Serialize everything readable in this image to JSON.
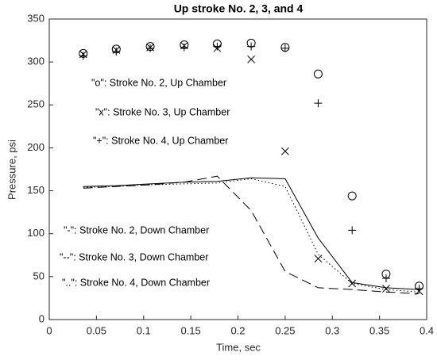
{
  "chart_data": {
    "type": "line",
    "title": "Up stroke No. 2, 3, and 4",
    "x_label": "Time, sec",
    "y_label": "Pressure, psi",
    "x": [
      0.036,
      0.071,
      0.107,
      0.143,
      0.178,
      0.214,
      0.25,
      0.285,
      0.321,
      0.357,
      0.392
    ],
    "series": [
      {
        "name": "\"o\": Stroke No. 2, Up Chamber",
        "color": "#000000",
        "marker": "o",
        "values": [
          310,
          315,
          318,
          320,
          321,
          322,
          317,
          286,
          144,
          53,
          39
        ]
      },
      {
        "name": "\"x\": Stroke No. 3, Up Chamber",
        "color": "#000000",
        "marker": "x",
        "values": [
          309,
          314,
          317,
          319,
          316,
          303,
          196,
          71,
          42,
          36,
          33
        ]
      },
      {
        "name": "\"+\": Stroke No. 4, Up Chamber",
        "color": "#000000",
        "marker": "+",
        "values": [
          307,
          312,
          316,
          317,
          318,
          318,
          316,
          252,
          104,
          48,
          36
        ]
      },
      {
        "name": "\"-\": Stroke No. 2, Down Chamber",
        "color": "#000000",
        "linestyle": "solid",
        "values": [
          155,
          156,
          158,
          160,
          161,
          165,
          164,
          95,
          43,
          37,
          35
        ]
      },
      {
        "name": "\"--\": Stroke No. 3, Down Chamber",
        "color": "#000000",
        "linestyle": "dashed",
        "values": [
          153,
          155,
          157,
          160,
          167,
          127,
          56,
          37,
          35,
          32,
          30
        ]
      },
      {
        "name": "\"..\": Stroke No. 4, Down Chamber",
        "color": "#000000",
        "linestyle": "dotted",
        "values": [
          154,
          155,
          157,
          158,
          159,
          164,
          155,
          76,
          42,
          35,
          32
        ]
      }
    ],
    "xlim": [
      0,
      0.4
    ],
    "xticks": [
      0,
      0.05,
      0.1,
      0.15,
      0.2,
      0.25,
      0.3,
      0.35,
      0.4
    ],
    "ylim": [
      0,
      350
    ],
    "yticks": [
      0,
      50,
      100,
      150,
      200,
      250,
      300,
      350
    ],
    "grid": false
  }
}
